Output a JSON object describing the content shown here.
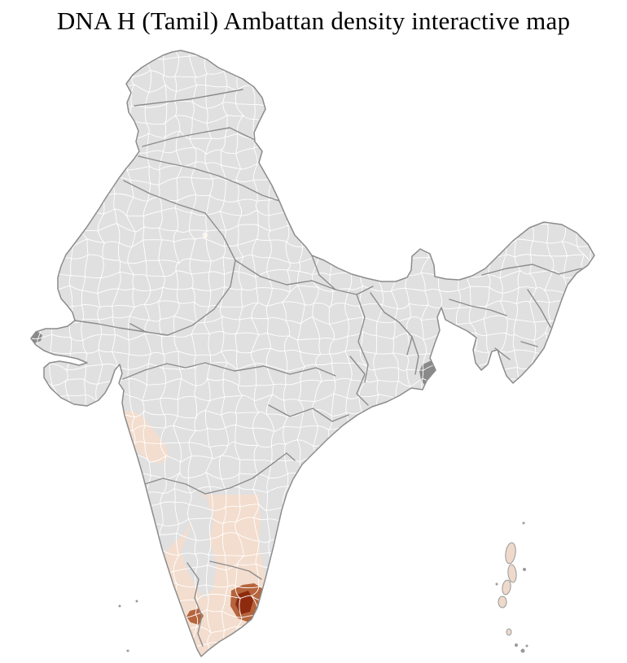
{
  "title": "DNA H (Tamil) Ambattan density interactive map",
  "map": {
    "country": "India",
    "unit": "districts",
    "palette": {
      "density_none": "#e0e0e0",
      "density_low": "#f3ddce",
      "density_medium": "#b5643c",
      "density_high": "#8e2a0e"
    }
  },
  "colors": {
    "background": "#ffffff",
    "district_fill": "#e0e0e0",
    "district_border": "#ffffff",
    "state_border": "#8c8c8c",
    "coastline": "#8c8c8c",
    "density_low": "#f3ddce",
    "density_medium": "#b5643c",
    "density_high": "#8e2a0e",
    "delta_marsh": "#8a8a8a",
    "island_fill": "#eed9cb",
    "island_stroke": "#9a9a9a",
    "islet_gray": "#9a9a9a",
    "capital_spot": "#f8f3e9"
  },
  "mesh": {
    "step": 19,
    "jitter": 11,
    "curve": 9,
    "stroke_width": 0.9
  }
}
